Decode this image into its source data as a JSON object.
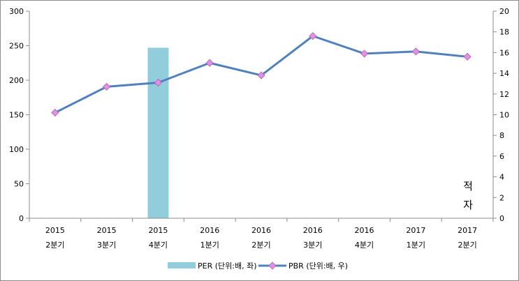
{
  "chart_data": {
    "type": "bar+line",
    "categories": [
      {
        "year": "2015",
        "quarter": "2분기"
      },
      {
        "year": "2015",
        "quarter": "3분기"
      },
      {
        "year": "2015",
        "quarter": "4분기"
      },
      {
        "year": "2016",
        "quarter": "1분기"
      },
      {
        "year": "2016",
        "quarter": "2분기"
      },
      {
        "year": "2016",
        "quarter": "3분기"
      },
      {
        "year": "2016",
        "quarter": "4분기"
      },
      {
        "year": "2017",
        "quarter": "1분기"
      },
      {
        "year": "2017",
        "quarter": "2분기"
      }
    ],
    "series": [
      {
        "name": "PER (단위:배, 좌)",
        "type": "bar",
        "axis": "left",
        "color": "#92cddc",
        "values": [
          null,
          null,
          247,
          null,
          null,
          null,
          null,
          null,
          null
        ]
      },
      {
        "name": "PBR (단위:배, 우)",
        "type": "line",
        "axis": "right",
        "color": "#4f81bd",
        "marker_color": "#e38fe3",
        "values": [
          10.2,
          12.7,
          13.1,
          15.0,
          13.8,
          17.6,
          15.9,
          16.1,
          15.6
        ]
      }
    ],
    "y_left": {
      "lim": [
        0,
        300
      ],
      "ticks": [
        0,
        50,
        100,
        150,
        200,
        250,
        300
      ]
    },
    "y_right": {
      "lim": [
        0,
        20
      ],
      "ticks": [
        0,
        2,
        4,
        6,
        8,
        10,
        12,
        14,
        16,
        18,
        20
      ]
    },
    "annotation": [
      "적",
      "자"
    ],
    "grid": false,
    "legend": "bottom"
  }
}
